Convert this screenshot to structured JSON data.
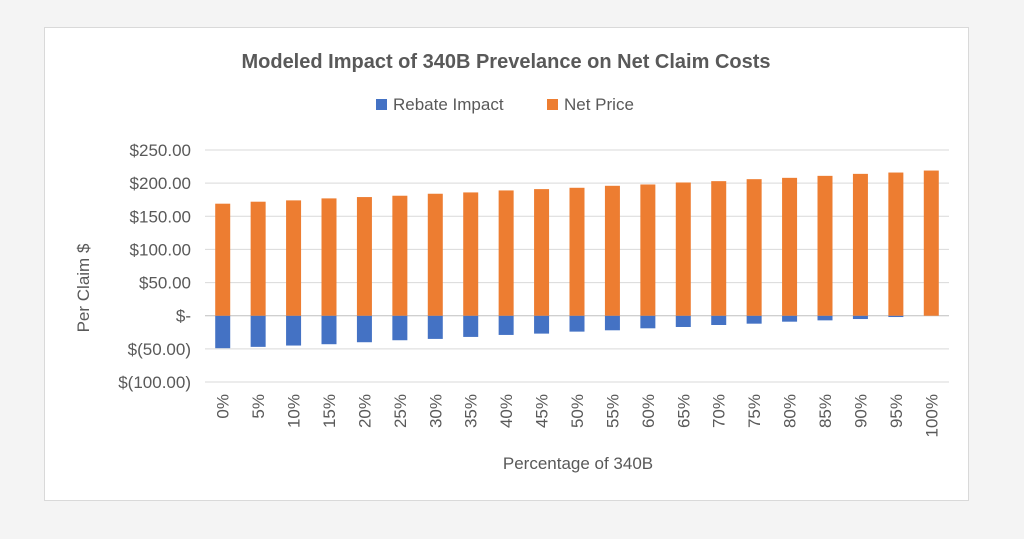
{
  "chart_data": {
    "type": "bar",
    "stacked": true,
    "title": "Modeled Impact of 340B Prevelance on Net Claim Costs",
    "xlabel": "Percentage of 340B",
    "ylabel": "Per Claim $",
    "ylim": [
      -100,
      250
    ],
    "y_ticks": [
      {
        "value": 250,
        "label": "$250.00"
      },
      {
        "value": 200,
        "label": "$200.00"
      },
      {
        "value": 150,
        "label": "$150.00"
      },
      {
        "value": 100,
        "label": "$100.00"
      },
      {
        "value": 50,
        "label": "$50.00"
      },
      {
        "value": 0,
        "label": "$-"
      },
      {
        "value": -50,
        "label": "$(50.00)"
      },
      {
        "value": -100,
        "label": "$(100.00)"
      }
    ],
    "categories": [
      "0%",
      "5%",
      "10%",
      "15%",
      "20%",
      "25%",
      "30%",
      "35%",
      "40%",
      "45%",
      "50%",
      "55%",
      "60%",
      "65%",
      "70%",
      "75%",
      "80%",
      "85%",
      "90%",
      "95%",
      "100%"
    ],
    "series": [
      {
        "name": "Rebate Impact",
        "color": "#4472c4",
        "values": [
          -49,
          -47,
          -45,
          -43,
          -40,
          -37,
          -35,
          -32,
          -29,
          -27,
          -24,
          -22,
          -19,
          -17,
          -14,
          -12,
          -9,
          -7,
          -5,
          -2,
          0
        ]
      },
      {
        "name": "Net Price",
        "color": "#ed7d31",
        "values": [
          169,
          172,
          174,
          177,
          179,
          181,
          184,
          186,
          189,
          191,
          193,
          196,
          198,
          201,
          203,
          206,
          208,
          211,
          214,
          216,
          219
        ]
      }
    ],
    "legend_position": "top",
    "grid": true
  }
}
